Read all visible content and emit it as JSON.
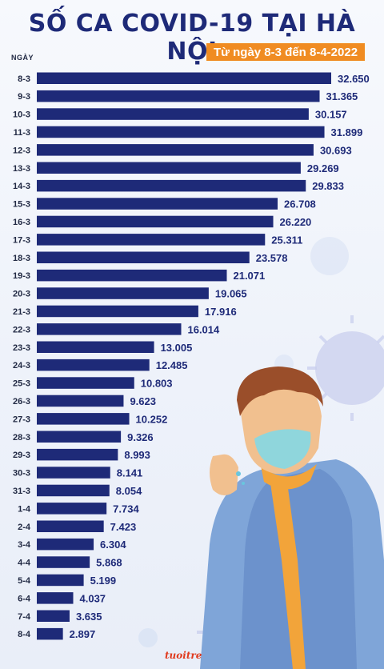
{
  "title": "SỐ CA COVID-19 TẠI HÀ NỘI",
  "date_range": "Từ ngày 8-3 đến 8-4-2022",
  "axis_label": "NGÀY",
  "logo_text": "tuoitre",
  "colors": {
    "bar": "#1e2a78",
    "title": "#1e2a78",
    "badge": "#f08c22",
    "value_text": "#1e2a78",
    "label_text": "#222a44"
  },
  "chart_data": {
    "type": "bar",
    "orientation": "horizontal",
    "title": "SỐ CA COVID-19 TẠI HÀ NỘI",
    "subtitle": "Từ ngày 8-3 đến 8-4-2022",
    "ylabel": "NGÀY",
    "xlabel": "",
    "xlim": [
      0,
      32650
    ],
    "grid": false,
    "legend": "none",
    "categories": [
      "8-3",
      "9-3",
      "10-3",
      "11-3",
      "12-3",
      "13-3",
      "14-3",
      "15-3",
      "16-3",
      "17-3",
      "18-3",
      "19-3",
      "20-3",
      "21-3",
      "22-3",
      "23-3",
      "24-3",
      "25-3",
      "26-3",
      "27-3",
      "28-3",
      "29-3",
      "30-3",
      "31-3",
      "1-4",
      "2-4",
      "3-4",
      "4-4",
      "5-4",
      "6-4",
      "7-4",
      "8-4"
    ],
    "values": [
      32650,
      31365,
      30157,
      31899,
      30693,
      29269,
      29833,
      26708,
      26220,
      25311,
      23578,
      21071,
      19065,
      17916,
      16014,
      13005,
      12485,
      10803,
      9623,
      10252,
      9326,
      8993,
      8141,
      8054,
      7734,
      7423,
      6304,
      5868,
      5199,
      4037,
      3635,
      2897
    ],
    "value_labels": [
      "32.650",
      "31.365",
      "30.157",
      "31.899",
      "30.693",
      "29.269",
      "29.833",
      "26.708",
      "26.220",
      "25.311",
      "23.578",
      "21.071",
      "19.065",
      "17.916",
      "16.014",
      "13.005",
      "12.485",
      "10.803",
      "9.623",
      "10.252",
      "9.326",
      "8.993",
      "8.141",
      "8.054",
      "7.734",
      "7.423",
      "6.304",
      "5.868",
      "5.199",
      "4.037",
      "3.635",
      "2.897"
    ]
  }
}
